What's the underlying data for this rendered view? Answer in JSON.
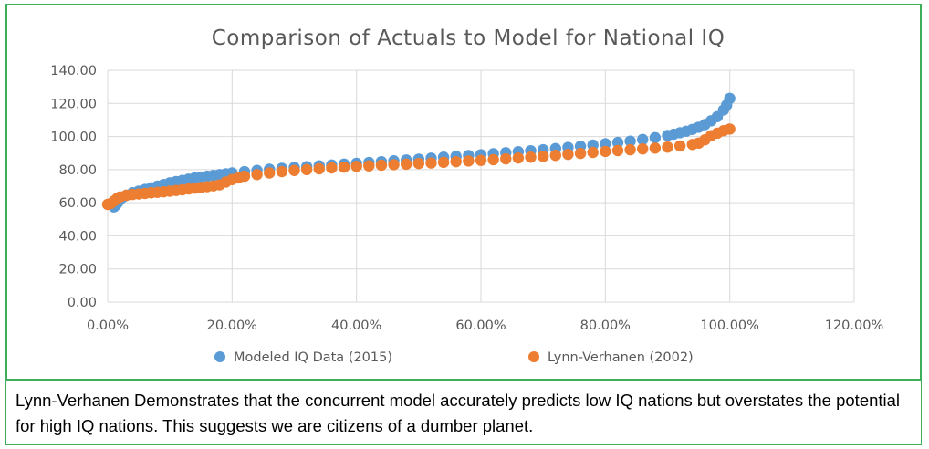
{
  "caption": "Lynn-Verhanen Demonstrates that the concurrent model accurately predicts low IQ nations but overstates the potential for high IQ nations.  This suggests we are citizens of a dumber planet.",
  "colors": {
    "modeled": "#5b9bd5",
    "lynn": "#ed7d31",
    "frame": "#3fae5a",
    "grid": "#d9d9d9",
    "text": "#595959"
  },
  "chart_data": {
    "type": "scatter",
    "title": "Comparison of Actuals to Model for National IQ",
    "xlim": [
      0,
      120
    ],
    "ylim": [
      0,
      140
    ],
    "x_ticks": [
      0,
      20,
      40,
      60,
      80,
      100,
      120
    ],
    "y_ticks": [
      0,
      20,
      40,
      60,
      80,
      100,
      120,
      140
    ],
    "x_tick_labels": [
      "0.00%",
      "20.00%",
      "40.00%",
      "60.00%",
      "80.00%",
      "100.00%",
      "120.00%"
    ],
    "y_tick_labels": [
      "0.00",
      "20.00",
      "40.00",
      "60.00",
      "80.00",
      "100.00",
      "120.00",
      "140.00"
    ],
    "grid": true,
    "legend_position": "bottom",
    "series": [
      {
        "name": "Modeled IQ Data (2015)",
        "points": [
          [
            1,
            57.5
          ],
          [
            1.3,
            58.5
          ],
          [
            1.6,
            60
          ],
          [
            2,
            62
          ],
          [
            2.5,
            63.5
          ],
          [
            3,
            64.5
          ],
          [
            4,
            66
          ],
          [
            5,
            67
          ],
          [
            6,
            68
          ],
          [
            7,
            69
          ],
          [
            8,
            70
          ],
          [
            9,
            71
          ],
          [
            10,
            72
          ],
          [
            11,
            72.8
          ],
          [
            12,
            73.5
          ],
          [
            13,
            74.2
          ],
          [
            14,
            75
          ],
          [
            15,
            75.5
          ],
          [
            16,
            76
          ],
          [
            17,
            76.5
          ],
          [
            18,
            77
          ],
          [
            19,
            77.5
          ],
          [
            20,
            78
          ],
          [
            22,
            78.8
          ],
          [
            24,
            79.5
          ],
          [
            26,
            80.2
          ],
          [
            28,
            80.8
          ],
          [
            30,
            81.3
          ],
          [
            32,
            81.8
          ],
          [
            34,
            82.3
          ],
          [
            36,
            82.8
          ],
          [
            38,
            83.3
          ],
          [
            40,
            83.8
          ],
          [
            42,
            84.3
          ],
          [
            44,
            84.8
          ],
          [
            46,
            85.3
          ],
          [
            48,
            85.8
          ],
          [
            50,
            86.3
          ],
          [
            52,
            86.9
          ],
          [
            54,
            87.5
          ],
          [
            56,
            88
          ],
          [
            58,
            88.5
          ],
          [
            60,
            89
          ],
          [
            62,
            89.6
          ],
          [
            64,
            90.2
          ],
          [
            66,
            90.8
          ],
          [
            68,
            91.4
          ],
          [
            70,
            92
          ],
          [
            72,
            92.7
          ],
          [
            74,
            93.4
          ],
          [
            76,
            94.1
          ],
          [
            78,
            94.8
          ],
          [
            80,
            95.6
          ],
          [
            82,
            96.4
          ],
          [
            84,
            97.2
          ],
          [
            86,
            98.2
          ],
          [
            88,
            99.3
          ],
          [
            90,
            100.6
          ],
          [
            91,
            101.4
          ],
          [
            92,
            102.3
          ],
          [
            93,
            103.2
          ],
          [
            94,
            104.3
          ],
          [
            95,
            105.6
          ],
          [
            96,
            107.2
          ],
          [
            97,
            109.5
          ],
          [
            98,
            112
          ],
          [
            99,
            116
          ],
          [
            99.5,
            119
          ],
          [
            100,
            123
          ]
        ]
      },
      {
        "name": "Lynn-Verhanen (2002)",
        "points": [
          [
            0,
            59
          ],
          [
            0.5,
            59.5
          ],
          [
            1,
            61
          ],
          [
            1.5,
            62.5
          ],
          [
            2,
            63.5
          ],
          [
            3,
            64.5
          ],
          [
            4,
            65
          ],
          [
            5,
            65.3
          ],
          [
            6,
            65.6
          ],
          [
            7,
            66
          ],
          [
            8,
            66.3
          ],
          [
            9,
            66.6
          ],
          [
            10,
            67
          ],
          [
            11,
            67.4
          ],
          [
            12,
            67.8
          ],
          [
            13,
            68.3
          ],
          [
            14,
            68.8
          ],
          [
            15,
            69.3
          ],
          [
            16,
            69.7
          ],
          [
            17,
            70.2
          ],
          [
            18,
            70.8
          ],
          [
            19,
            72.5
          ],
          [
            20,
            74
          ],
          [
            21,
            75
          ],
          [
            22,
            76
          ],
          [
            24,
            77
          ],
          [
            26,
            78
          ],
          [
            28,
            78.8
          ],
          [
            30,
            79.5
          ],
          [
            32,
            80
          ],
          [
            34,
            80.5
          ],
          [
            36,
            81
          ],
          [
            38,
            81.5
          ],
          [
            40,
            82
          ],
          [
            42,
            82.3
          ],
          [
            44,
            82.7
          ],
          [
            46,
            83
          ],
          [
            48,
            83.3
          ],
          [
            50,
            83.7
          ],
          [
            52,
            84
          ],
          [
            54,
            84.4
          ],
          [
            56,
            84.8
          ],
          [
            58,
            85.2
          ],
          [
            60,
            85.6
          ],
          [
            62,
            86
          ],
          [
            64,
            86.5
          ],
          [
            66,
            87
          ],
          [
            68,
            87.5
          ],
          [
            70,
            88
          ],
          [
            72,
            88.6
          ],
          [
            74,
            89.2
          ],
          [
            76,
            89.8
          ],
          [
            78,
            90.4
          ],
          [
            80,
            91
          ],
          [
            82,
            91.5
          ],
          [
            84,
            92
          ],
          [
            86,
            92.5
          ],
          [
            88,
            93
          ],
          [
            90,
            93.6
          ],
          [
            92,
            94.3
          ],
          [
            94,
            95.2
          ],
          [
            95,
            96
          ],
          [
            96,
            98
          ],
          [
            97,
            100.5
          ],
          [
            98,
            102
          ],
          [
            99,
            103.5
          ],
          [
            100,
            104.5
          ]
        ]
      }
    ]
  }
}
